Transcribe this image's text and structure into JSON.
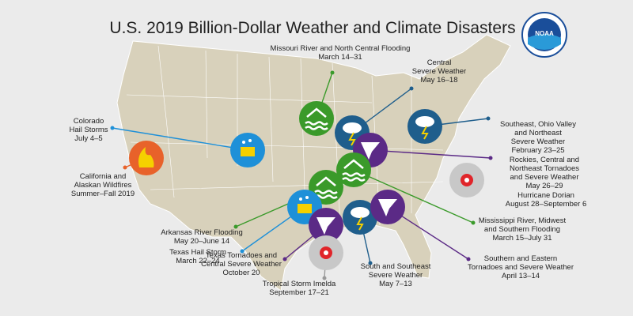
{
  "title": "U.S. 2019 Billion-Dollar Weather and Climate Disasters",
  "logo": "NOAA",
  "events": [
    {
      "lines": [
        "Missouri River and North Central Flooding",
        "March 14–31"
      ]
    },
    {
      "lines": [
        "Central",
        "Severe Weather",
        "May 16–18"
      ]
    },
    {
      "lines": [
        "Southeast, Ohio Valley",
        "and Northeast",
        "Severe Weather",
        "February 23–25"
      ]
    },
    {
      "lines": [
        "Rockies, Central and",
        "Northeast Tornadoes",
        "and Severe Weather",
        "May 26–29"
      ]
    },
    {
      "lines": [
        "Hurricane Dorian",
        "August 28–September 6"
      ]
    },
    {
      "lines": [
        "Mississippi River, Midwest",
        "and Southern Flooding",
        "March 15–July 31"
      ]
    },
    {
      "lines": [
        "Southern and Eastern",
        "Tornadoes and Severe Weather",
        "April 13–14"
      ]
    },
    {
      "lines": [
        "South and Southeast",
        "Severe Weather",
        "May 7–13"
      ]
    },
    {
      "lines": [
        "Tropical Storm Imelda",
        "September 17–21"
      ]
    },
    {
      "lines": [
        "Texas Tornadoes and",
        "Central Severe Weather",
        "October 20"
      ]
    },
    {
      "lines": [
        "Texas Hail Storm",
        "March 22–24"
      ]
    },
    {
      "lines": [
        "Arkansas River Flooding",
        "May 20–June 14"
      ]
    },
    {
      "lines": [
        "California and",
        "Alaskan Wildfires",
        "Summer–Fall 2019"
      ]
    },
    {
      "lines": [
        "Colorado",
        "Hail Storms",
        "July 4–5"
      ]
    }
  ]
}
